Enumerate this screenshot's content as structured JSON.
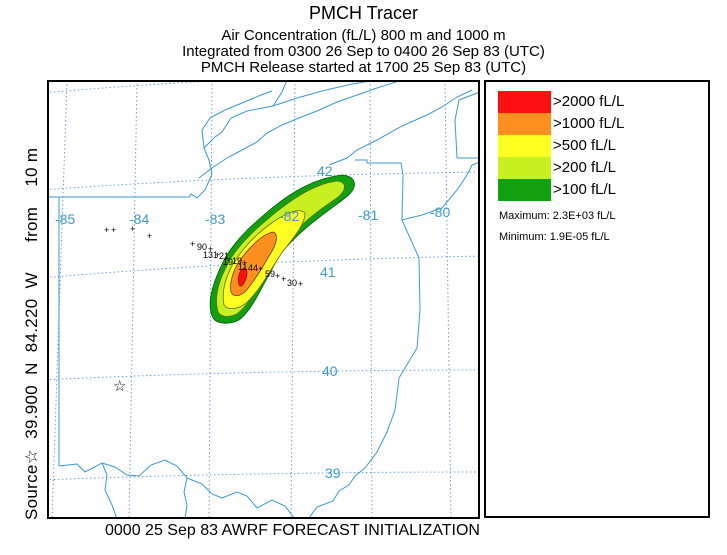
{
  "header": {
    "title": "PMCH Tracer",
    "line2": "Air Concentration (fL/L)  800 m and  1000 m",
    "line3": "Integrated from 0300 26 Sep to 0400 26 Sep 83 (UTC)",
    "line4": "PMCH Release started at 1700 25 Sep 83 (UTC)"
  },
  "side_label": "Source☆  39.900  N  84.220  W      from    10 m",
  "footer": "0000 25 Sep 83 AWRF FORECAST INITIALIZATION",
  "map": {
    "lon_labels": [
      "-85",
      "-84",
      "-83",
      "-82",
      "-81",
      "-80"
    ],
    "lat_labels": [
      "42",
      "41",
      "40",
      "39"
    ],
    "source_marker": "☆",
    "track_labels": [
      "90",
      "131",
      "21",
      "19",
      "19",
      "11",
      "44",
      "59",
      "30"
    ],
    "colors": {
      "grid": "#6a9fd6",
      "border": "#3b9ac9",
      "label": "#3b9ac9"
    }
  },
  "legend": {
    "items": [
      {
        "label": ">2000 fL/L",
        "color": "#ff1010"
      },
      {
        "label": ">1000 fL/L",
        "color": "#ff9020"
      },
      {
        "label": ">500 fL/L",
        "color": "#ffff20"
      },
      {
        "label": ">200 fL/L",
        "color": "#c8f020"
      },
      {
        "label": ">100 fL/L",
        "color": "#10a010"
      }
    ],
    "maximum": "Maximum: 2.3E+03 fL/L",
    "minimum": "Minimum: 1.9E-05 fL/L"
  }
}
